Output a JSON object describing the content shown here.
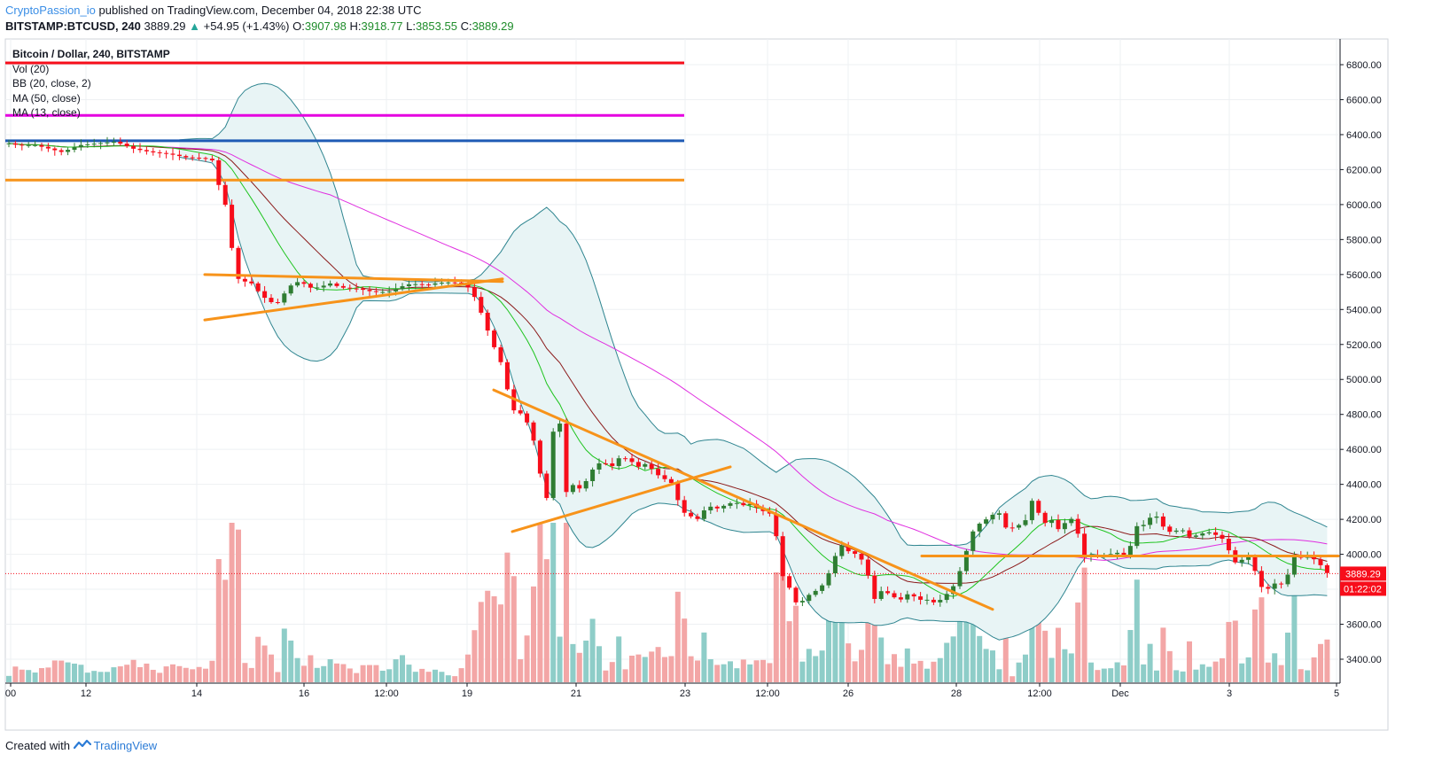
{
  "header": {
    "author": "CryptoPassion_io",
    "published_text": " published on TradingView.com, December 04, 2018 22:38 UTC",
    "symbol": "BITSTAMP:BTCUSD, 240",
    "last": "3889.29",
    "change": "+54.95 (+1.43%)",
    "o_label": "O:",
    "o_value": "3907.98",
    "h_label": "H:",
    "h_value": "3918.77",
    "l_label": "L:",
    "l_value": "3853.55",
    "c_label": "C:",
    "c_value": "3889.29"
  },
  "legend": {
    "title": "Bitcoin / Dollar, 240, BITSTAMP",
    "vol": "Vol (20)",
    "bb": "BB (20, close, 2)",
    "ma50": "MA (50, close)",
    "ma13": "MA (13, close)"
  },
  "footer": {
    "created_with": "Created with",
    "brand": "TradingView"
  },
  "colors": {
    "up": "#2e7d32",
    "down": "#f70d1a",
    "vol_up": "#8ecdc8",
    "vol_down": "#f3a6a6",
    "bb": "#2f8590",
    "bb_fill": "#e8f4f5",
    "ma13": "#1ec41e",
    "ma20": "#8b1a1a",
    "ma50": "#e02ee0",
    "trendline": "#f7931a"
  },
  "chart_data": {
    "type": "candlestick",
    "y_ticks": [
      "6800.00",
      "6600.00",
      "6400.00",
      "6200.00",
      "6000.00",
      "5800.00",
      "5600.00",
      "5400.00",
      "5200.00",
      "5000.00",
      "4800.00",
      "4600.00",
      "4400.00",
      "4200.00",
      "4000.00",
      "3800.00",
      "3600.00",
      "3400.00"
    ],
    "x_ticks": [
      "00",
      "12",
      "14",
      "16",
      "12:00",
      "19",
      "21",
      "23",
      "12:00",
      "26",
      "28",
      "12:00",
      "Dec",
      "3",
      "5"
    ],
    "last_price_label": "3889.29",
    "countdown_label": "01:22:02",
    "horizontal_levels": [
      {
        "price": 6810,
        "color": "#f70d1a"
      },
      {
        "price": 6510,
        "color": "#e500e0"
      },
      {
        "price": 6365,
        "color": "#1f5bb5"
      },
      {
        "price": 6140,
        "color": "#f7931a"
      }
    ],
    "close_path": [
      [
        0,
        6360
      ],
      [
        20,
        6340
      ],
      [
        40,
        6340
      ],
      [
        55,
        6320
      ],
      [
        70,
        6300
      ],
      [
        90,
        6340
      ],
      [
        110,
        6350
      ],
      [
        130,
        6360
      ],
      [
        150,
        6320
      ],
      [
        170,
        6300
      ],
      [
        190,
        6290
      ],
      [
        210,
        6270
      ],
      [
        230,
        6265
      ],
      [
        242,
        6250
      ],
      [
        250,
        6020
      ],
      [
        258,
        5980
      ],
      [
        264,
        5600
      ],
      [
        272,
        5560
      ],
      [
        282,
        5560
      ],
      [
        292,
        5500
      ],
      [
        302,
        5450
      ],
      [
        312,
        5430
      ],
      [
        322,
        5500
      ],
      [
        332,
        5560
      ],
      [
        342,
        5550
      ],
      [
        352,
        5520
      ],
      [
        362,
        5530
      ],
      [
        372,
        5550
      ],
      [
        382,
        5530
      ],
      [
        392,
        5520
      ],
      [
        402,
        5520
      ],
      [
        412,
        5510
      ],
      [
        422,
        5500
      ],
      [
        432,
        5500
      ],
      [
        442,
        5505
      ],
      [
        452,
        5530
      ],
      [
        462,
        5545
      ],
      [
        472,
        5545
      ],
      [
        482,
        5540
      ],
      [
        492,
        5550
      ],
      [
        502,
        5555
      ],
      [
        512,
        5555
      ],
      [
        522,
        5550
      ],
      [
        532,
        5510
      ],
      [
        540,
        5420
      ],
      [
        548,
        5310
      ],
      [
        556,
        5200
      ],
      [
        564,
        5120
      ],
      [
        572,
        4950
      ],
      [
        580,
        4820
      ],
      [
        590,
        4800
      ],
      [
        600,
        4700
      ],
      [
        608,
        4500
      ],
      [
        616,
        4280
      ],
      [
        624,
        4700
      ],
      [
        632,
        4750
      ],
      [
        640,
        4300
      ],
      [
        648,
        4420
      ],
      [
        656,
        4360
      ],
      [
        664,
        4450
      ],
      [
        672,
        4510
      ],
      [
        680,
        4530
      ],
      [
        690,
        4500
      ],
      [
        700,
        4560
      ],
      [
        710,
        4540
      ],
      [
        720,
        4500
      ],
      [
        730,
        4520
      ],
      [
        740,
        4460
      ],
      [
        750,
        4430
      ],
      [
        760,
        4400
      ],
      [
        768,
        4250
      ],
      [
        778,
        4220
      ],
      [
        788,
        4200
      ],
      [
        798,
        4280
      ],
      [
        808,
        4260
      ],
      [
        818,
        4280
      ],
      [
        828,
        4300
      ],
      [
        838,
        4280
      ],
      [
        848,
        4290
      ],
      [
        858,
        4250
      ],
      [
        868,
        4240
      ],
      [
        876,
        4100
      ],
      [
        884,
        3850
      ],
      [
        892,
        3800
      ],
      [
        900,
        3700
      ],
      [
        908,
        3750
      ],
      [
        916,
        3780
      ],
      [
        924,
        3800
      ],
      [
        932,
        3850
      ],
      [
        940,
        3960
      ],
      [
        948,
        4060
      ],
      [
        956,
        4020
      ],
      [
        966,
        4000
      ],
      [
        976,
        3950
      ],
      [
        986,
        3740
      ],
      [
        996,
        3800
      ],
      [
        1006,
        3760
      ],
      [
        1016,
        3740
      ],
      [
        1026,
        3780
      ],
      [
        1036,
        3740
      ],
      [
        1046,
        3740
      ],
      [
        1056,
        3720
      ],
      [
        1066,
        3760
      ],
      [
        1076,
        3820
      ],
      [
        1086,
        3940
      ],
      [
        1096,
        4120
      ],
      [
        1106,
        4180
      ],
      [
        1116,
        4210
      ],
      [
        1126,
        4250
      ],
      [
        1136,
        4140
      ],
      [
        1146,
        4160
      ],
      [
        1156,
        4180
      ],
      [
        1166,
        4330
      ],
      [
        1176,
        4170
      ],
      [
        1186,
        4200
      ],
      [
        1196,
        4130
      ],
      [
        1206,
        4220
      ],
      [
        1214,
        4170
      ],
      [
        1222,
        3980
      ],
      [
        1232,
        4000
      ],
      [
        1242,
        3990
      ],
      [
        1252,
        4000
      ],
      [
        1262,
        4010
      ],
      [
        1272,
        3990
      ],
      [
        1282,
        4160
      ],
      [
        1292,
        4170
      ],
      [
        1302,
        4240
      ],
      [
        1312,
        4160
      ],
      [
        1322,
        4120
      ],
      [
        1332,
        4150
      ],
      [
        1342,
        4100
      ],
      [
        1352,
        4110
      ],
      [
        1362,
        4130
      ],
      [
        1372,
        4110
      ],
      [
        1382,
        4080
      ],
      [
        1392,
        3950
      ],
      [
        1402,
        3970
      ],
      [
        1412,
        3990
      ],
      [
        1420,
        3820
      ],
      [
        1430,
        3800
      ],
      [
        1440,
        3840
      ],
      [
        1450,
        3820
      ],
      [
        1458,
        3990
      ],
      [
        1468,
        3980
      ],
      [
        1478,
        3990
      ],
      [
        1488,
        3950
      ],
      [
        1498,
        3889
      ]
    ]
  }
}
